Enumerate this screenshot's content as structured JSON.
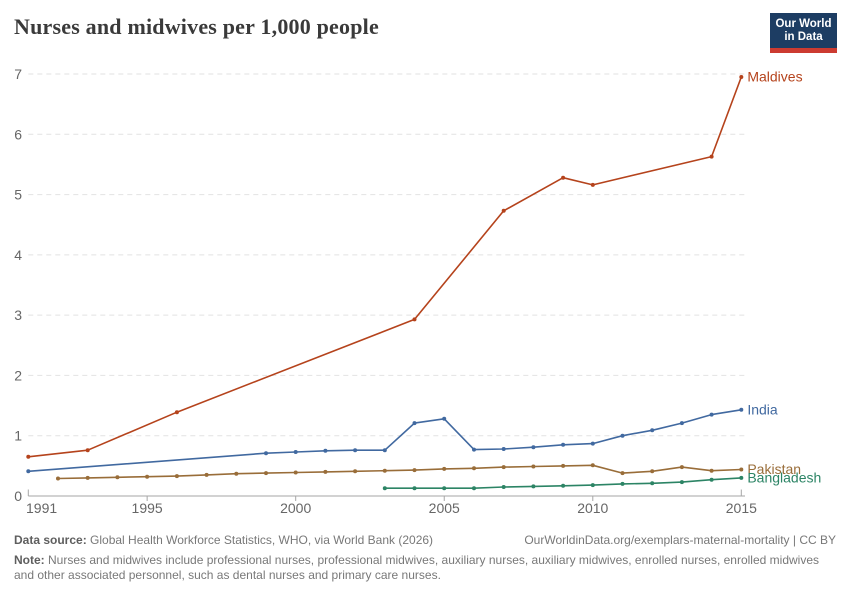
{
  "header": {
    "title": "Nurses and midwives per 1,000 people",
    "logo": {
      "line1": "Our World",
      "line2": "in Data",
      "bg_color": "#1d3d63",
      "accent_color": "#cc3b31"
    }
  },
  "chart_data": {
    "type": "line",
    "title": "Nurses and midwives per 1,000 people",
    "xlabel": "",
    "ylabel": "",
    "xlim": [
      1991,
      2015.3
    ],
    "ylim": [
      0,
      7
    ],
    "x_ticks": [
      1991,
      1995,
      2000,
      2005,
      2010,
      2015
    ],
    "y_ticks": [
      0,
      1,
      2,
      3,
      4,
      5,
      6,
      7
    ],
    "grid": "horizontal-dashed",
    "legend_position": "line-end-labels-right",
    "gridline_color": "#e2e2e2",
    "axis_color": "#a6a6a6",
    "tick_label_color": "#666666",
    "series": [
      {
        "name": "Maldives",
        "color": "#b5431c",
        "points": [
          [
            1991,
            0.65
          ],
          [
            1993,
            0.76
          ],
          [
            1996,
            1.39
          ],
          [
            2004,
            2.93
          ],
          [
            2007,
            4.73
          ],
          [
            2009,
            5.28
          ],
          [
            2010,
            5.16
          ],
          [
            2014,
            5.63
          ],
          [
            2015,
            6.95
          ]
        ]
      },
      {
        "name": "India",
        "color": "#4169a0",
        "points": [
          [
            1991,
            0.41
          ],
          [
            1999,
            0.71
          ],
          [
            2000,
            0.73
          ],
          [
            2001,
            0.75
          ],
          [
            2002,
            0.76
          ],
          [
            2003,
            0.76
          ],
          [
            2004,
            1.21
          ],
          [
            2005,
            1.28
          ],
          [
            2006,
            0.77
          ],
          [
            2007,
            0.78
          ],
          [
            2008,
            0.81
          ],
          [
            2009,
            0.85
          ],
          [
            2010,
            0.87
          ],
          [
            2011,
            1.0
          ],
          [
            2012,
            1.09
          ],
          [
            2013,
            1.21
          ],
          [
            2014,
            1.35
          ],
          [
            2015,
            1.43
          ]
        ]
      },
      {
        "name": "Pakistan",
        "color": "#996d39",
        "points": [
          [
            1992,
            0.29
          ],
          [
            1993,
            0.3
          ],
          [
            1994,
            0.31
          ],
          [
            1995,
            0.32
          ],
          [
            1996,
            0.33
          ],
          [
            1997,
            0.35
          ],
          [
            1998,
            0.37
          ],
          [
            1999,
            0.38
          ],
          [
            2000,
            0.39
          ],
          [
            2001,
            0.4
          ],
          [
            2002,
            0.41
          ],
          [
            2003,
            0.42
          ],
          [
            2004,
            0.43
          ],
          [
            2005,
            0.45
          ],
          [
            2006,
            0.46
          ],
          [
            2007,
            0.48
          ],
          [
            2008,
            0.49
          ],
          [
            2009,
            0.5
          ],
          [
            2010,
            0.51
          ],
          [
            2011,
            0.38
          ],
          [
            2012,
            0.41
          ],
          [
            2013,
            0.48
          ],
          [
            2014,
            0.42
          ],
          [
            2015,
            0.44
          ]
        ]
      },
      {
        "name": "Bangladesh",
        "color": "#2c8465",
        "points": [
          [
            2003,
            0.13
          ],
          [
            2004,
            0.13
          ],
          [
            2005,
            0.13
          ],
          [
            2006,
            0.13
          ],
          [
            2007,
            0.15
          ],
          [
            2008,
            0.16
          ],
          [
            2009,
            0.17
          ],
          [
            2010,
            0.18
          ],
          [
            2011,
            0.2
          ],
          [
            2012,
            0.21
          ],
          [
            2013,
            0.23
          ],
          [
            2014,
            0.27
          ],
          [
            2015,
            0.3
          ]
        ]
      }
    ]
  },
  "footer": {
    "data_source_label": "Data source:",
    "data_source_text": " Global Health Workforce Statistics, WHO, via World Bank (2026)",
    "citation": "OurWorldinData.org/exemplars-maternal-mortality | CC BY",
    "note_label": "Note:",
    "note_text": " Nurses and midwives include professional nurses, professional midwives, auxiliary nurses, auxiliary midwives, enrolled nurses, enrolled midwives and other associated personnel, such as dental nurses and primary care nurses."
  }
}
